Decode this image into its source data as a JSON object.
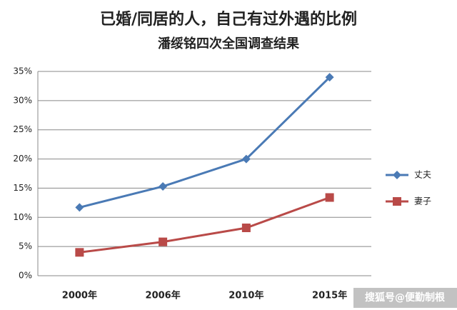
{
  "chart_data": {
    "type": "line",
    "title": "已婚/同居的人，自己有过外遇的比例",
    "subtitle": "潘绥铭四次全国调查结果",
    "categories": [
      "2000年",
      "2006年",
      "2010年",
      "2015年"
    ],
    "series": [
      {
        "name": "丈夫",
        "color": "#4a7ab5",
        "marker": "diamond",
        "values": [
          11.7,
          15.3,
          20,
          34
        ]
      },
      {
        "name": "妻子",
        "color": "#b94a48",
        "marker": "square",
        "values": [
          4,
          5.8,
          8.2,
          13.4
        ]
      }
    ],
    "ylim": [
      0,
      35
    ],
    "yticks": [
      {
        "value": 0,
        "label": "0%"
      },
      {
        "value": 5,
        "label": "5%"
      },
      {
        "value": 10,
        "label": "10%"
      },
      {
        "value": 15,
        "label": "15%"
      },
      {
        "value": 20,
        "label": "20%"
      },
      {
        "value": 25,
        "label": "25%"
      },
      {
        "value": 30,
        "label": "30%"
      },
      {
        "value": 35,
        "label": "35%"
      }
    ],
    "grid": true,
    "legend": "right",
    "watermark": "搜狐号@便勤制根"
  }
}
